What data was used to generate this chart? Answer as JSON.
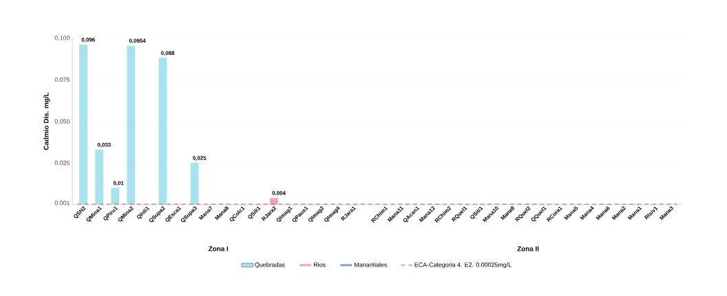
{
  "chart_data": {
    "type": "bar",
    "ylabel": "Cadmio Dis. mg/L",
    "categories": [
      "QSN2",
      "QMina1",
      "QPiru1",
      "QMina2",
      "QInti1",
      "QSupa2",
      "QEsca1",
      "QSupa3",
      "Mana7",
      "Mana8",
      "QColc1",
      "QSili1",
      "RJara2",
      "QImag1",
      "QPaus1",
      "QImag2",
      "QImag4",
      "RJara1",
      null,
      "RChim1",
      "Mana11",
      "QAcan1",
      "Mana12",
      "RChim2",
      "RQuel1",
      "QSiti1",
      "Mana10",
      "Mana9",
      "RQuel2",
      "QQuel1",
      "RCora1",
      "Mana5",
      "Mana4",
      "Mana6",
      "Mana2",
      "Mana1",
      "RIsiv1",
      "Mana3"
    ],
    "series": [
      {
        "name": "Quebradas",
        "color": "#a6e3ef",
        "values": [
          0.096,
          0.033,
          0.01,
          0.0954,
          null,
          0.088,
          null,
          0.025,
          null,
          null,
          null,
          null,
          null,
          null,
          null,
          null,
          null,
          null,
          null,
          null,
          null,
          null,
          null,
          null,
          null,
          null,
          null,
          null,
          null,
          null,
          null,
          null,
          null,
          null,
          null,
          null,
          null,
          null
        ],
        "value_labels": [
          "0,096",
          "0,033",
          "0,01",
          "0,0954",
          null,
          "0,088",
          null,
          "0,025",
          null,
          null,
          null,
          null,
          null,
          null,
          null,
          null,
          null,
          null,
          null,
          null,
          null,
          null,
          null,
          null,
          null,
          null,
          null,
          null,
          null,
          null,
          null,
          null,
          null,
          null,
          null,
          null,
          null,
          null
        ]
      },
      {
        "name": "Rios",
        "color": "#f5a3b2",
        "values": [
          null,
          null,
          null,
          null,
          null,
          null,
          null,
          null,
          null,
          null,
          null,
          null,
          0.004,
          null,
          null,
          null,
          null,
          null,
          null,
          null,
          null,
          null,
          null,
          null,
          null,
          null,
          null,
          null,
          null,
          null,
          null,
          null,
          null,
          null,
          null,
          null,
          null,
          null
        ],
        "value_labels": [
          null,
          null,
          null,
          null,
          null,
          null,
          null,
          null,
          null,
          null,
          null,
          null,
          "0,004",
          null,
          null,
          null,
          null,
          null,
          null,
          null,
          null,
          null,
          null,
          null,
          null,
          null,
          null,
          null,
          null,
          null,
          null,
          null,
          null,
          null,
          null,
          null,
          null,
          null
        ]
      },
      {
        "name": "Manantiales",
        "color": "#7f9fd9",
        "values": [
          null,
          null,
          null,
          null,
          null,
          null,
          null,
          null,
          null,
          null,
          null,
          null,
          null,
          null,
          null,
          null,
          null,
          null,
          null,
          null,
          null,
          null,
          null,
          null,
          null,
          null,
          null,
          null,
          null,
          null,
          null,
          null,
          null,
          null,
          null,
          null,
          null,
          null
        ]
      }
    ],
    "ylim": [
      0,
      0.1
    ],
    "yticks": [
      {
        "value": 0.001,
        "label": "0.001"
      },
      {
        "value": 0.025,
        "label": "0.025"
      },
      {
        "value": 0.05,
        "label": "0.050"
      },
      {
        "value": 0.075,
        "label": "0.075"
      },
      {
        "value": 0.1,
        "label": "0.100"
      }
    ],
    "grid": "y",
    "legend": "bottom",
    "ref_lines": [
      {
        "axis": "y",
        "value": 0.00025,
        "label": "ECA-Categoria 4. E2. 0.00025mg/L",
        "color": "#c8506e",
        "line_style": "dashed"
      }
    ],
    "annotations": [
      "Zona I",
      "Zona II"
    ]
  }
}
